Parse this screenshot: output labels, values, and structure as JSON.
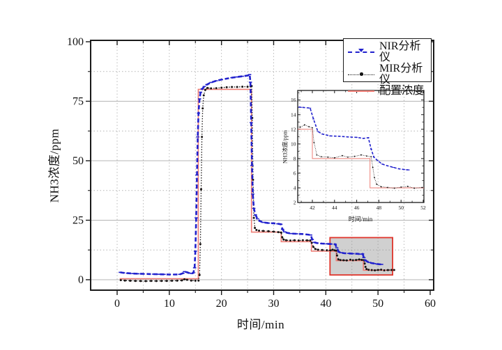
{
  "figure": {
    "background": "#ffffff"
  },
  "chart_data": {
    "type": "line",
    "title": "",
    "xlabel": "时间/min",
    "ylabel": "NH3浓度/ppm",
    "axes": {
      "x": {
        "range": [
          -5,
          60.7
        ],
        "major_ticks": [
          0,
          10,
          20,
          30,
          40,
          50,
          60
        ],
        "minor_ticks": [
          5,
          15,
          25,
          35,
          45,
          55
        ],
        "grid_dotted": [
          0,
          5,
          10,
          15,
          20,
          25,
          30,
          35,
          40,
          45,
          50,
          55
        ]
      },
      "y": {
        "range": [
          -4.4,
          100
        ],
        "major_ticks": [
          0,
          25,
          50,
          75,
          100
        ],
        "minor_ticks": [
          12.5,
          37.5,
          62.5,
          87.5
        ],
        "grid_solid": [
          0,
          25,
          50,
          75
        ],
        "grid_dotted": [
          12.5,
          37.5,
          62.5,
          87.5
        ]
      }
    },
    "grid": {
      "solid_color": "#b5b5b5",
      "dotted_color": "#b3b3b3"
    },
    "legend": {
      "position": "top-right"
    },
    "highlight_box": {
      "x": [
        40.8,
        52.8
      ],
      "y": [
        2,
        17.7
      ],
      "fill": "#8e8e8e",
      "fill_opacity": 0.42,
      "border_color": "#e0342a"
    },
    "series": [
      {
        "name": "NIR分析仪",
        "color": "#2121cd",
        "style": "dashed",
        "marker": "hbar",
        "points": [
          [
            0.6,
            3.1
          ],
          [
            1.2,
            2.9
          ],
          [
            2,
            2.75
          ],
          [
            3,
            2.6
          ],
          [
            4,
            2.5
          ],
          [
            5,
            2.45
          ],
          [
            6,
            2.4
          ],
          [
            7,
            2.35
          ],
          [
            8,
            2.3
          ],
          [
            9,
            2.25
          ],
          [
            10,
            2.2
          ],
          [
            11,
            2.2
          ],
          [
            12,
            2.25
          ],
          [
            12.6,
            2.7
          ],
          [
            12.9,
            3.4
          ],
          [
            13.3,
            3.2
          ],
          [
            13.8,
            2.8
          ],
          [
            14.3,
            2.6
          ],
          [
            14.6,
            2.9
          ],
          [
            14.85,
            5
          ],
          [
            15.0,
            12
          ],
          [
            15.15,
            26
          ],
          [
            15.3,
            44
          ],
          [
            15.45,
            60
          ],
          [
            15.6,
            70
          ],
          [
            15.8,
            76
          ],
          [
            16.0,
            78.8
          ],
          [
            16.3,
            80.2
          ],
          [
            16.7,
            81.2
          ],
          [
            17.2,
            82
          ],
          [
            18,
            82.9
          ],
          [
            19,
            83.6
          ],
          [
            20,
            84.1
          ],
          [
            21,
            84.5
          ],
          [
            22,
            84.9
          ],
          [
            23,
            85.2
          ],
          [
            24,
            85.5
          ],
          [
            25,
            85.8
          ],
          [
            25.4,
            86.2
          ],
          [
            25.55,
            83
          ],
          [
            25.7,
            66
          ],
          [
            25.85,
            48
          ],
          [
            26.0,
            36
          ],
          [
            26.2,
            30
          ],
          [
            26.5,
            27.3
          ],
          [
            26.9,
            25.6
          ],
          [
            27.4,
            24.6
          ],
          [
            28,
            24.1
          ],
          [
            29,
            23.8
          ],
          [
            30,
            23.7
          ],
          [
            30.8,
            23.5
          ],
          [
            31.4,
            23.3
          ],
          [
            31.7,
            21.2
          ],
          [
            32.1,
            20.1
          ],
          [
            32.6,
            19.7
          ],
          [
            33.4,
            19.4
          ],
          [
            34.4,
            19.3
          ],
          [
            35.4,
            19.2
          ],
          [
            36.4,
            19.0
          ],
          [
            37.1,
            18.8
          ],
          [
            37.4,
            16.9
          ],
          [
            37.8,
            15.7
          ],
          [
            38.3,
            15.4
          ],
          [
            39.2,
            15.2
          ],
          [
            40.2,
            15.1
          ],
          [
            41.0,
            15.0
          ],
          [
            41.8,
            14.9
          ],
          [
            42.1,
            13.4
          ],
          [
            42.5,
            11.7
          ],
          [
            42.9,
            11.35
          ],
          [
            43.6,
            11.1
          ],
          [
            44.4,
            11.05
          ],
          [
            45.2,
            10.95
          ],
          [
            46.0,
            10.9
          ],
          [
            46.6,
            10.75
          ],
          [
            47.05,
            10.85
          ],
          [
            47.3,
            9.3
          ],
          [
            47.55,
            8.2
          ],
          [
            47.9,
            7.7
          ],
          [
            48.3,
            7.25
          ],
          [
            48.8,
            7.0
          ],
          [
            49.3,
            6.8
          ],
          [
            49.8,
            6.6
          ],
          [
            50.3,
            6.5
          ],
          [
            50.7,
            6.45
          ]
        ]
      },
      {
        "name": "MIR分析仪",
        "color": "#171212",
        "style": "dotted",
        "marker": "dot",
        "points": [
          [
            0.7,
            -0.2
          ],
          [
            1.5,
            -0.35
          ],
          [
            2.5,
            -0.45
          ],
          [
            3.5,
            -0.5
          ],
          [
            4.5,
            -0.55
          ],
          [
            5.5,
            -0.6
          ],
          [
            6.5,
            -0.5
          ],
          [
            7.5,
            -0.55
          ],
          [
            8.5,
            -0.5
          ],
          [
            9.5,
            -0.5
          ],
          [
            10.5,
            -0.45
          ],
          [
            11.5,
            -0.4
          ],
          [
            12.4,
            -0.3
          ],
          [
            12.9,
            0.2
          ],
          [
            13.4,
            -0.05
          ],
          [
            14.2,
            -0.35
          ],
          [
            15.0,
            -0.4
          ],
          [
            15.6,
            -0.35
          ],
          [
            15.8,
            2
          ],
          [
            15.95,
            15
          ],
          [
            16.1,
            38
          ],
          [
            16.25,
            60
          ],
          [
            16.4,
            72
          ],
          [
            16.6,
            77.5
          ],
          [
            16.9,
            79.8
          ],
          [
            17.3,
            80.6
          ],
          [
            18,
            80.4
          ],
          [
            19,
            80.5
          ],
          [
            20,
            80.7
          ],
          [
            21,
            80.9
          ],
          [
            22,
            81.0
          ],
          [
            23,
            81.0
          ],
          [
            24,
            81.1
          ],
          [
            25,
            81.1
          ],
          [
            25.6,
            81.2
          ],
          [
            25.78,
            81.4
          ],
          [
            25.9,
            68
          ],
          [
            26.05,
            42
          ],
          [
            26.2,
            26
          ],
          [
            26.4,
            21.8
          ],
          [
            26.7,
            20.9
          ],
          [
            27.2,
            20.6
          ],
          [
            28,
            20.5
          ],
          [
            29,
            20.4
          ],
          [
            30,
            20.2
          ],
          [
            30.9,
            20.0
          ],
          [
            31.45,
            19.8
          ],
          [
            31.65,
            17.8
          ],
          [
            31.9,
            16.9
          ],
          [
            32.4,
            16.6
          ],
          [
            33.2,
            16.5
          ],
          [
            34.0,
            16.6
          ],
          [
            34.8,
            16.5
          ],
          [
            35.6,
            16.6
          ],
          [
            36.4,
            16.55
          ],
          [
            37.0,
            16.5
          ],
          [
            37.3,
            15.5
          ],
          [
            37.6,
            13.8
          ],
          [
            38.0,
            12.9
          ],
          [
            38.5,
            12.6
          ],
          [
            39.3,
            12.5
          ],
          [
            40.2,
            12.4
          ],
          [
            40.9,
            12.3
          ],
          [
            41.3,
            12.6
          ],
          [
            41.7,
            12.35
          ],
          [
            42.0,
            12.2
          ],
          [
            42.15,
            10.2
          ],
          [
            42.4,
            8.5
          ],
          [
            42.8,
            8.25
          ],
          [
            43.4,
            8.2
          ],
          [
            44.0,
            8.1
          ],
          [
            44.7,
            8.4
          ],
          [
            45.2,
            8.2
          ],
          [
            45.8,
            8.3
          ],
          [
            46.4,
            8.5
          ],
          [
            46.9,
            8.35
          ],
          [
            47.3,
            8.25
          ],
          [
            47.45,
            6.8
          ],
          [
            47.6,
            5.4
          ],
          [
            47.8,
            4.5
          ],
          [
            48.2,
            4.15
          ],
          [
            48.8,
            4.05
          ],
          [
            49.4,
            3.95
          ],
          [
            50.0,
            4.1
          ],
          [
            50.6,
            4.2
          ],
          [
            51.2,
            3.95
          ],
          [
            51.9,
            4.05
          ],
          [
            52.6,
            4.1
          ],
          [
            53.1,
            4.1
          ]
        ]
      },
      {
        "name": "配置浓度",
        "color": "#ee7d75",
        "style": "solid",
        "marker": "none",
        "points": [
          [
            0.5,
            0.4
          ],
          [
            15.55,
            0.4
          ],
          [
            15.55,
            80
          ],
          [
            25.75,
            80
          ],
          [
            25.75,
            20
          ],
          [
            31.45,
            20
          ],
          [
            31.45,
            16
          ],
          [
            37.25,
            16
          ],
          [
            37.25,
            12
          ],
          [
            42.0,
            12
          ],
          [
            42.0,
            8
          ],
          [
            47.2,
            8
          ],
          [
            47.2,
            4
          ],
          [
            52.6,
            4
          ]
        ]
      }
    ],
    "inset": {
      "xlabel": "时间/min",
      "ylabel": "NH3浓度/ppm",
      "x_range": [
        40.7,
        52.1
      ],
      "y_range": [
        2,
        17.3
      ],
      "x_major_ticks": [
        42,
        44,
        46,
        48,
        50,
        52
      ],
      "x_minor_ticks": [
        41,
        43,
        45,
        47,
        49,
        51
      ],
      "y_major_ticks": [
        2,
        4,
        6,
        8,
        10,
        12,
        14,
        16
      ],
      "y_minor_ticks": [
        3,
        5,
        7,
        9,
        11,
        13,
        15,
        17
      ],
      "background": "transparent"
    }
  }
}
